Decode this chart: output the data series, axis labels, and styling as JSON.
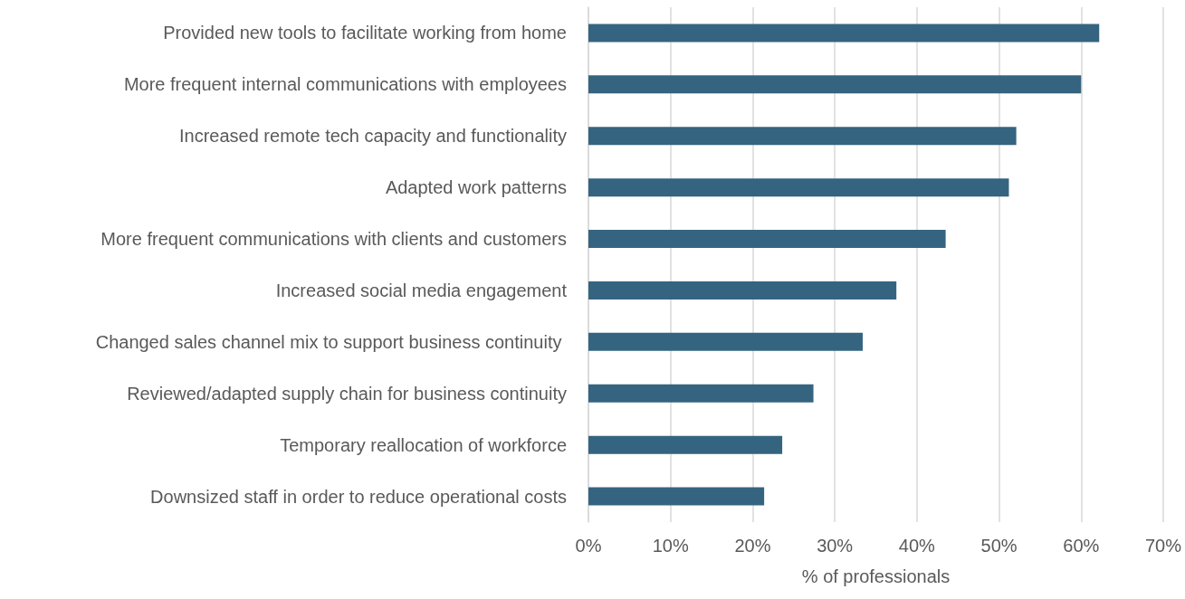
{
  "chart_data": {
    "type": "bar",
    "orientation": "horizontal",
    "xlabel": "% of professionals",
    "categories": [
      "Provided new tools to facilitate working from home",
      "More frequent internal communications with employees",
      "Increased remote tech capacity and functionality",
      "Adapted work patterns",
      "More frequent communications with clients and customers",
      "Increased social media engagement",
      "Changed sales channel mix to support business continuity ",
      "Reviewed/adapted supply chain for business continuity",
      "Temporary reallocation of workforce",
      "Downsized staff in order to reduce operational costs"
    ],
    "values": [
      62.2,
      60,
      52.1,
      51.2,
      43.5,
      37.5,
      33.4,
      27.4,
      23.6,
      21.4
    ],
    "color": "#356480",
    "xlim": [
      0,
      70
    ],
    "xticks": [
      {
        "value": 0,
        "label": "0%"
      },
      {
        "value": 10,
        "label": "10%"
      },
      {
        "value": 20,
        "label": "20%"
      },
      {
        "value": 30,
        "label": "30%"
      },
      {
        "value": 40,
        "label": "40%"
      },
      {
        "value": 50,
        "label": "50%"
      },
      {
        "value": 60,
        "label": "60%"
      },
      {
        "value": 70,
        "label": "70%"
      }
    ],
    "grid": "x"
  }
}
